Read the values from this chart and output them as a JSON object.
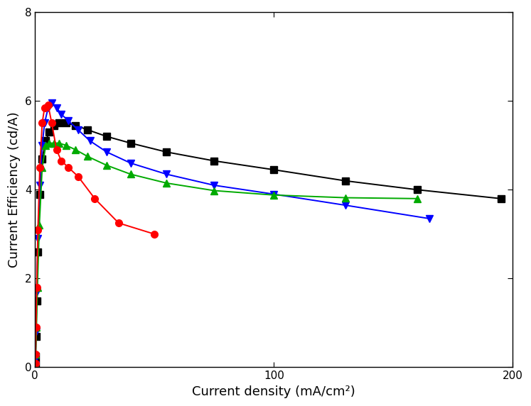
{
  "title": "",
  "xlabel": "Current density (mA/cm²)",
  "ylabel": "Current Efficiency (cd/A)",
  "xlim": [
    0,
    200
  ],
  "ylim": [
    0,
    8
  ],
  "xticks": [
    0,
    100,
    200
  ],
  "yticks": [
    0,
    2,
    4,
    6,
    8
  ],
  "background_color": "#ffffff",
  "series": [
    {
      "name": "black_square",
      "color": "#000000",
      "marker": "s",
      "linestyle": "-",
      "markersize": 7,
      "x": [
        0.1,
        0.2,
        0.4,
        0.7,
        1.2,
        2.0,
        3.0,
        4.5,
        6.0,
        8.0,
        10.0,
        13.0,
        17.0,
        22.0,
        30.0,
        40.0,
        55.0,
        75.0,
        100.0,
        130.0,
        160.0,
        195.0
      ],
      "y": [
        0.08,
        0.25,
        0.7,
        1.5,
        2.6,
        3.9,
        4.7,
        5.1,
        5.3,
        5.45,
        5.5,
        5.5,
        5.45,
        5.35,
        5.2,
        5.05,
        4.85,
        4.65,
        4.45,
        4.2,
        4.0,
        3.8
      ]
    },
    {
      "name": "blue_triangle_down",
      "color": "#0000ff",
      "marker": "v",
      "linestyle": "-",
      "markersize": 7,
      "x": [
        0.1,
        0.2,
        0.4,
        0.7,
        1.2,
        2.0,
        3.0,
        4.0,
        5.5,
        7.0,
        9.0,
        11.0,
        14.0,
        18.0,
        23.0,
        30.0,
        40.0,
        55.0,
        75.0,
        100.0,
        130.0,
        165.0
      ],
      "y": [
        0.05,
        0.2,
        0.8,
        1.7,
        2.9,
        4.1,
        5.0,
        5.5,
        5.85,
        5.95,
        5.85,
        5.7,
        5.55,
        5.35,
        5.1,
        4.85,
        4.6,
        4.35,
        4.1,
        3.9,
        3.65,
        3.35
      ]
    },
    {
      "name": "green_triangle_up",
      "color": "#00aa00",
      "marker": "^",
      "linestyle": "-",
      "markersize": 7,
      "x": [
        0.1,
        0.3,
        0.6,
        1.0,
        1.8,
        3.0,
        4.5,
        6.0,
        8.0,
        10.0,
        13.0,
        17.0,
        22.0,
        30.0,
        40.0,
        55.0,
        75.0,
        100.0,
        130.0,
        160.0
      ],
      "y": [
        0.05,
        0.3,
        0.9,
        1.8,
        3.2,
        4.5,
        5.0,
        5.05,
        5.05,
        5.05,
        5.0,
        4.9,
        4.75,
        4.55,
        4.35,
        4.15,
        3.98,
        3.88,
        3.82,
        3.8
      ]
    },
    {
      "name": "red_circle",
      "color": "#ff0000",
      "marker": "o",
      "linestyle": "-",
      "markersize": 7,
      "x": [
        0.1,
        0.2,
        0.4,
        0.7,
        1.2,
        2.0,
        3.0,
        4.0,
        5.5,
        7.0,
        9.0,
        11.0,
        14.0,
        18.0,
        25.0,
        35.0,
        50.0
      ],
      "y": [
        0.08,
        0.3,
        0.9,
        1.8,
        3.1,
        4.5,
        5.5,
        5.85,
        5.9,
        5.5,
        4.9,
        4.65,
        4.5,
        4.3,
        3.8,
        3.25,
        3.0
      ]
    }
  ]
}
